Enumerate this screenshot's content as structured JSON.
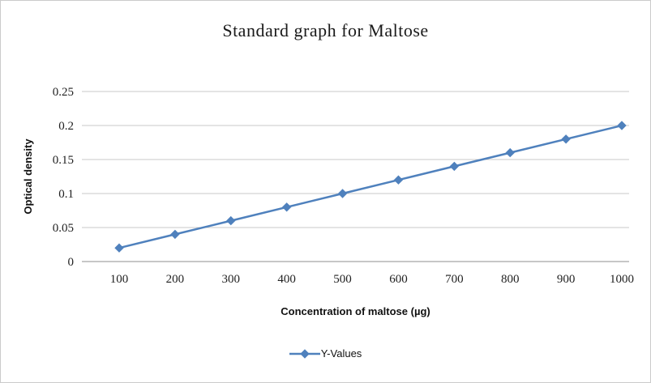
{
  "chart_data": {
    "type": "line",
    "title": "Standard graph for Maltose",
    "xlabel": "Concentration of maltose (µg)",
    "ylabel": "Optical density",
    "x": [
      "100",
      "200",
      "300",
      "400",
      "500",
      "600",
      "700",
      "800",
      "900",
      "1000"
    ],
    "series": [
      {
        "name": "Y-Values",
        "values": [
          0.02,
          0.04,
          0.06,
          0.08,
          0.1,
          0.12,
          0.14,
          0.16,
          0.18,
          0.2
        ],
        "color": "#4F81BD",
        "marker": "diamond"
      }
    ],
    "ylim": [
      0,
      0.25
    ],
    "yticks": [
      "0",
      "0.05",
      "0.1",
      "0.15",
      "0.2",
      "0.25"
    ],
    "grid": true,
    "gridline_color": "#c9c9c9",
    "axis_line_color": "#8f8f8f",
    "legend_position": "bottom"
  }
}
